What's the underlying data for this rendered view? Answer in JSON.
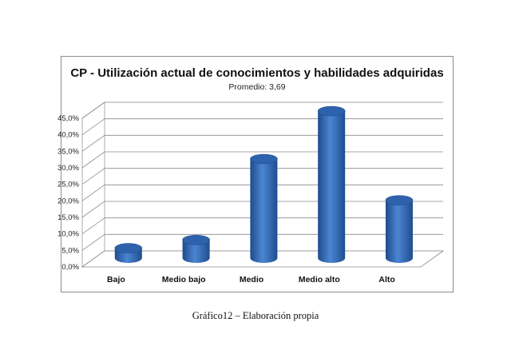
{
  "caption": "Gráfico12 – Elaboración propia",
  "chart_data": {
    "type": "bar",
    "title": "CP - Utilización actual de conocimientos y habilidades adquiridas",
    "subtitle": "Promedio: 3,69",
    "categories": [
      "Bajo",
      "Medio bajo",
      "Medio",
      "Medio alto",
      "Alto"
    ],
    "values": [
      3.0,
      5.5,
      30.0,
      44.5,
      17.5
    ],
    "yticks": [
      "0,0%",
      "5,0%",
      "10,0%",
      "15,0%",
      "20,0%",
      "25,0%",
      "30,0%",
      "35,0%",
      "40,0%",
      "45,0%"
    ],
    "ylim": [
      0,
      45
    ],
    "grid": true,
    "bar_color": "#3a6eb8"
  }
}
